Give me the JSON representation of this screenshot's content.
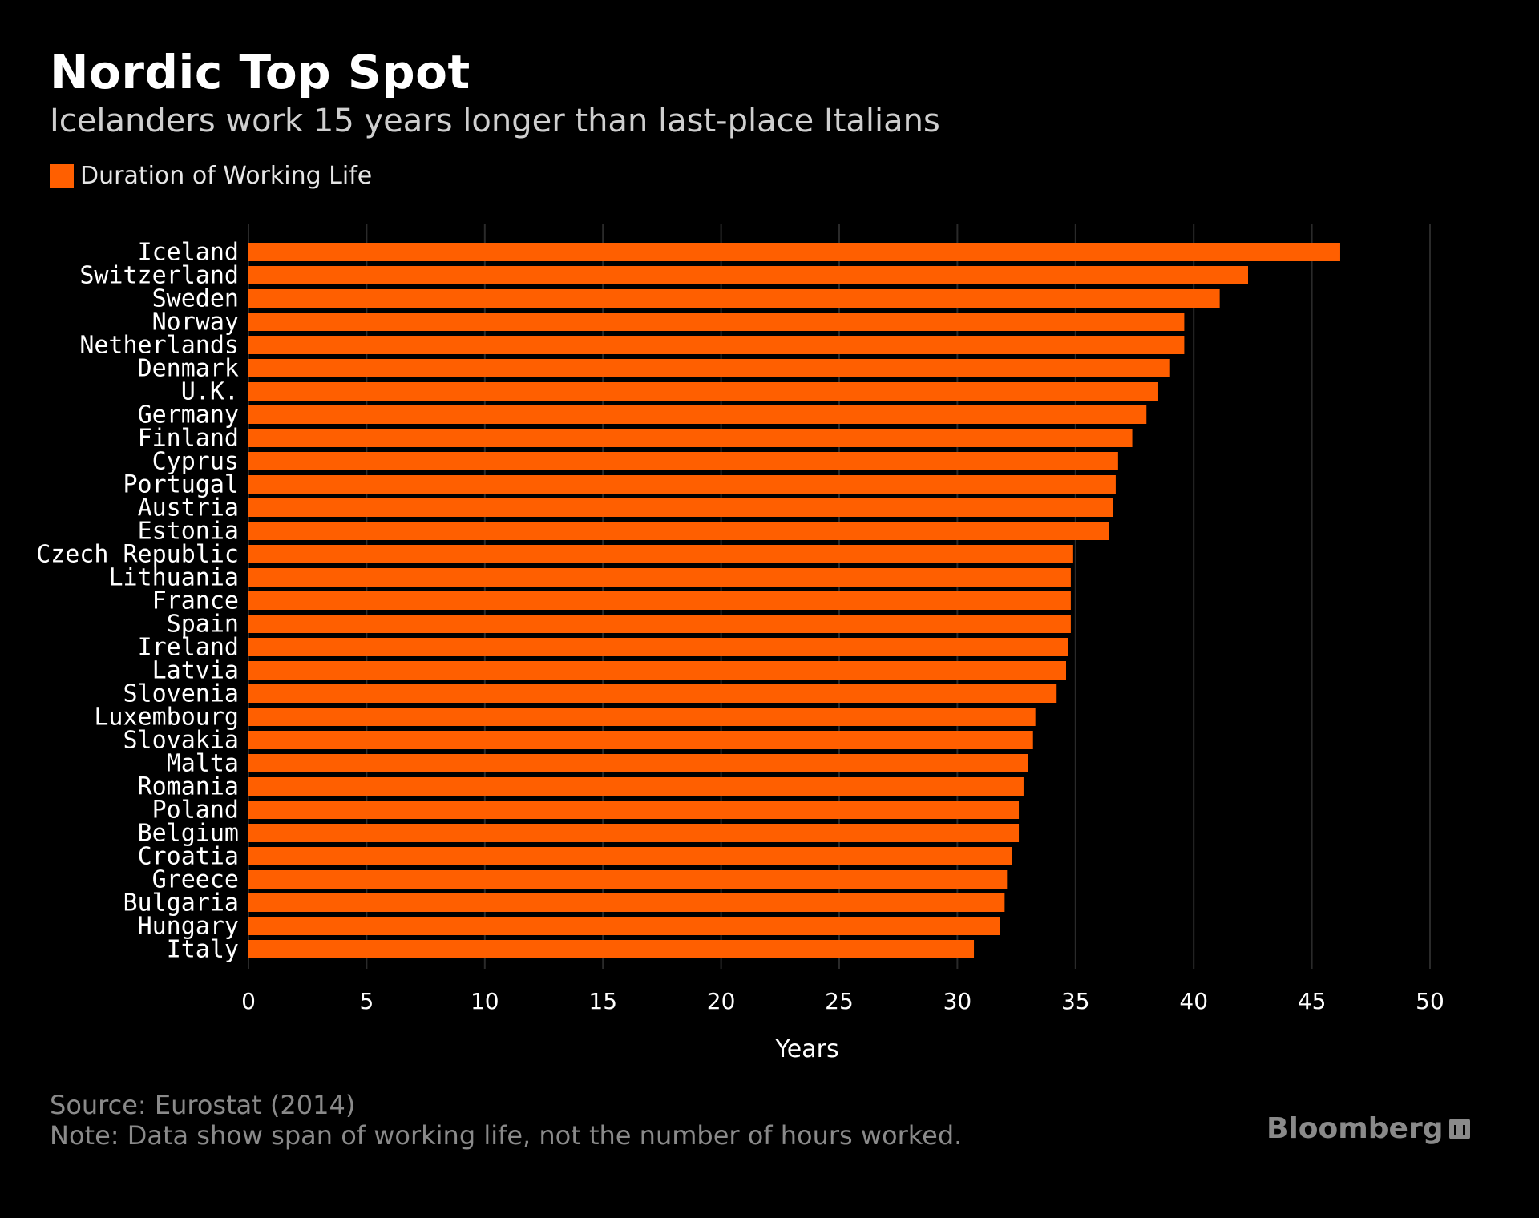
{
  "header": {
    "title": "Nordic Top Spot",
    "subtitle": "Icelanders work 15 years longer than last-place Italians"
  },
  "legend": {
    "label": "Duration of Working Life"
  },
  "colors": {
    "bar": "#ff5f00",
    "grid": "#2a2a2a",
    "axis_text": "#ffffff",
    "background": "#000000"
  },
  "footer": {
    "source": "Source: Eurostat (2014)",
    "note": "Note: Data show span of working life, not the number of hours worked.",
    "brand": "Bloomberg"
  },
  "chart_data": {
    "type": "bar",
    "orientation": "horizontal",
    "title": "Nordic Top Spot",
    "subtitle": "Icelanders work 15 years longer than last-place Italians",
    "xlabel": "Years",
    "ylabel": "",
    "xlim": [
      0,
      50
    ],
    "xticks": [
      0,
      5,
      10,
      15,
      20,
      25,
      30,
      35,
      40,
      45,
      50
    ],
    "grid": true,
    "legend_position": "top-left",
    "categories": [
      "Iceland",
      "Switzerland",
      "Sweden",
      "Norway",
      "Netherlands",
      "Denmark",
      "U.K.",
      "Germany",
      "Finland",
      "Cyprus",
      "Portugal",
      "Austria",
      "Estonia",
      "Czech Republic",
      "Lithuania",
      "France",
      "Spain",
      "Ireland",
      "Latvia",
      "Slovenia",
      "Luxembourg",
      "Slovakia",
      "Malta",
      "Romania",
      "Poland",
      "Belgium",
      "Croatia",
      "Greece",
      "Bulgaria",
      "Hungary",
      "Italy"
    ],
    "series": [
      {
        "name": "Duration of Working Life",
        "values": [
          46.2,
          42.3,
          41.1,
          39.6,
          39.6,
          39.0,
          38.5,
          38.0,
          37.4,
          36.8,
          36.7,
          36.6,
          36.4,
          34.9,
          34.8,
          34.8,
          34.8,
          34.7,
          34.6,
          34.2,
          33.3,
          33.2,
          33.0,
          32.8,
          32.6,
          32.6,
          32.3,
          32.1,
          32.0,
          31.8,
          30.7
        ]
      }
    ]
  }
}
